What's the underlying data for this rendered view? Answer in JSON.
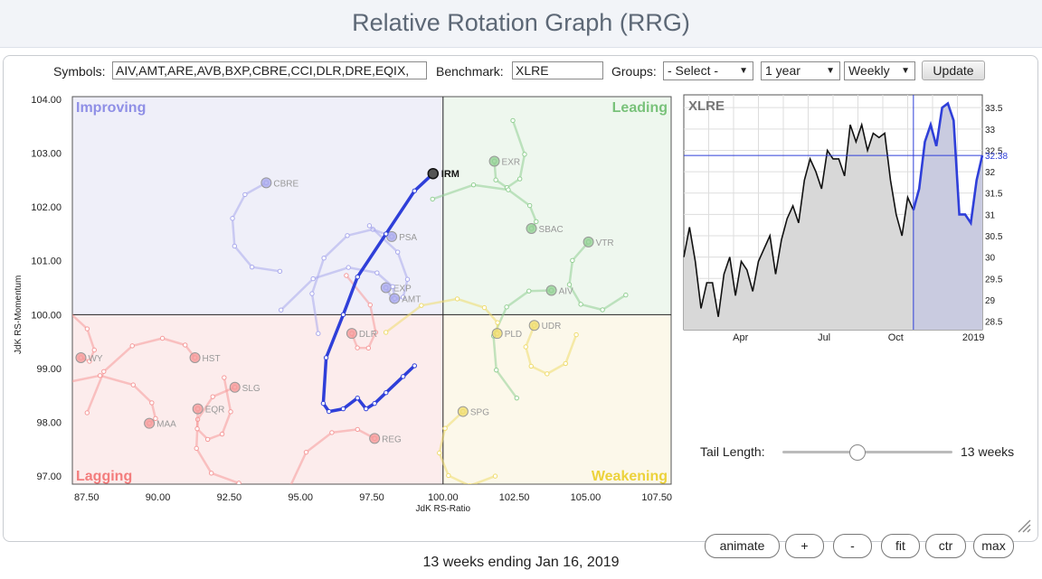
{
  "header": {
    "title": "Relative Rotation Graph (RRG)"
  },
  "toolbar": {
    "symbols_label": "Symbols:",
    "symbols_value": "AIV,AMT,ARE,AVB,BXP,CBRE,CCI,DLR,DRE,EQIX,",
    "benchmark_label": "Benchmark:",
    "benchmark_value": "XLRE",
    "groups_label": "Groups:",
    "groups_value": "- Select -",
    "period_value": "1 year",
    "frequency_value": "Weekly",
    "update_label": "Update",
    "dropdown_arrow": "▼"
  },
  "rrg": {
    "quadrants": {
      "improving": "Improving",
      "leading": "Leading",
      "lagging": "Lagging",
      "weakening": "Weakening"
    },
    "colors": {
      "improving": "#8f8fe6",
      "leading": "#79c27a",
      "lagging": "#f37d7d",
      "weakening": "#ecd23b",
      "highlight": "#2f3fd9"
    },
    "x_label": "JdK RS-Ratio",
    "y_label": "JdK RS-Momentum",
    "x_ticks": [
      "87.50",
      "90.00",
      "92.50",
      "95.00",
      "97.50",
      "100.00",
      "102.50",
      "105.00",
      "107.50"
    ],
    "y_ticks": [
      "104.00",
      "103.00",
      "102.00",
      "101.00",
      "100.00",
      "99.00",
      "98.00",
      "97.00"
    ],
    "highlighted": {
      "symbol": "IRM",
      "tail": [
        [
          99.0,
          99.05
        ],
        [
          98.6,
          98.85
        ],
        [
          98.0,
          98.55
        ],
        [
          97.6,
          98.35
        ],
        [
          97.3,
          98.25
        ],
        [
          97.0,
          98.45
        ],
        [
          96.5,
          98.25
        ],
        [
          96.0,
          98.2
        ],
        [
          95.8,
          98.35
        ],
        [
          95.9,
          99.2
        ],
        [
          96.5,
          100.0
        ],
        [
          97.0,
          100.7
        ],
        [
          98.0,
          101.5
        ],
        [
          99.0,
          102.3
        ],
        [
          99.65,
          102.62
        ]
      ]
    },
    "symbols": [
      {
        "label": "CBRE",
        "x": 93.8,
        "y": 102.45,
        "q": "improving"
      },
      {
        "label": "EXR",
        "x": 101.8,
        "y": 102.85,
        "q": "leading"
      },
      {
        "label": "SBAC",
        "x": 103.1,
        "y": 101.6,
        "q": "leading"
      },
      {
        "label": "PSA",
        "x": 98.2,
        "y": 101.45,
        "q": "improving"
      },
      {
        "label": "VTR",
        "x": 105.1,
        "y": 101.35,
        "q": "leading"
      },
      {
        "label": "EXP",
        "x": 98.0,
        "y": 100.5,
        "q": "improving"
      },
      {
        "label": "AMT",
        "x": 98.3,
        "y": 100.3,
        "q": "improving"
      },
      {
        "label": "AIV",
        "x": 103.8,
        "y": 100.45,
        "q": "leading"
      },
      {
        "label": "UDR",
        "x": 103.2,
        "y": 99.8,
        "q": "weakening"
      },
      {
        "label": "WY",
        "x": 87.3,
        "y": 99.2,
        "q": "lagging"
      },
      {
        "label": "HST",
        "x": 91.3,
        "y": 99.2,
        "q": "lagging"
      },
      {
        "label": "SLG",
        "x": 92.7,
        "y": 98.65,
        "q": "lagging"
      },
      {
        "label": "EQR",
        "x": 91.4,
        "y": 98.25,
        "q": "lagging"
      },
      {
        "label": "MAA",
        "x": 89.7,
        "y": 97.98,
        "q": "lagging"
      },
      {
        "label": "REG",
        "x": 97.6,
        "y": 97.7,
        "q": "lagging"
      },
      {
        "label": "SPG",
        "x": 100.7,
        "y": 98.2,
        "q": "weakening"
      },
      {
        "label": "DLR",
        "x": 96.8,
        "y": 99.65,
        "q": "lagging"
      },
      {
        "label": "PLD",
        "x": 101.9,
        "y": 99.65,
        "q": "weakening"
      }
    ]
  },
  "mini_chart": {
    "symbol": "XLRE",
    "current_value": "32.38",
    "y_ticks": [
      "33.5",
      "33",
      "32.5",
      "32",
      "31.5",
      "31",
      "30.5",
      "30",
      "29.5",
      "29",
      "28.5"
    ],
    "x_labels": [
      "Apr",
      "Jul",
      "Oct",
      "2019"
    ]
  },
  "tail_length": {
    "label": "Tail Length:",
    "value_text": "13 weeks",
    "value": 13
  },
  "buttons": {
    "animate": "animate",
    "plus": "+",
    "minus": "-",
    "fit": "fit",
    "ctr": "ctr",
    "max": "max"
  },
  "footer": {
    "text": "13 weeks ending Jan 16, 2019"
  }
}
